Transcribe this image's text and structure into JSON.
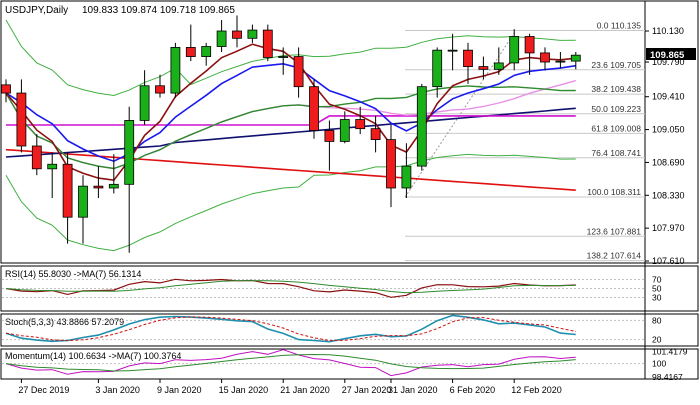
{
  "header": {
    "symbol": "USDJPY,Daily",
    "ohlc": "109.833 109.874 109.718 109.865"
  },
  "price_axis": {
    "ticks": [
      "110.130",
      "109.790",
      "109.410",
      "109.050",
      "108.690",
      "108.330",
      "107.970",
      "107.610"
    ],
    "current_price": "109.865"
  },
  "x_axis": {
    "labels": [
      "27 Dec 2019",
      "3 Jan 2020",
      "9 Jan 2020",
      "15 Jan 2020",
      "21 Jan 2020",
      "27 Jan 2020",
      "31 Jan 2020",
      "6 Feb 2020",
      "12 Feb 2020"
    ]
  },
  "fibonacci": [
    {
      "label": "0.0 110.135",
      "level": 110.135
    },
    {
      "label": "23.6 109.705",
      "level": 109.705
    },
    {
      "label": "38.2 109.438",
      "level": 109.438
    },
    {
      "label": "50.0 109.223",
      "level": 109.223
    },
    {
      "label": "61.8 109.008",
      "level": 109.008
    },
    {
      "label": "76.4 108.741",
      "level": 108.741
    },
    {
      "label": "100.0 108.311",
      "level": 108.311
    },
    {
      "label": "123.6 107.881",
      "level": 107.881
    },
    {
      "label": "138.2 107.614",
      "level": 107.614
    }
  ],
  "rsi": {
    "title": "RSI(14) 55.8030 ->MA(7) 56.1314",
    "ticks": [
      "70",
      "50",
      "30"
    ]
  },
  "stoch": {
    "title": "Stoch(5,3,3) 43.8866 57.2079",
    "ticks": [
      "80",
      "20"
    ]
  },
  "momentum": {
    "title": "Momentum(14) 100.6634 ->MA(7) 100.3764",
    "ticks": [
      "101.4179",
      "100",
      "98.4167"
    ]
  },
  "colors": {
    "bull": "#19b019",
    "bear": "#ee1c1c",
    "ma_blue": "#1a1af0",
    "ma_maroon": "#8b1010",
    "ma_green": "#2e8b2e",
    "ma_magenta": "#d010d0",
    "ma_pink": "#e890e8",
    "ma_navy": "#101070",
    "ma_red": "#e01010",
    "bollinger": "#40b040"
  },
  "chart_data": {
    "type": "candlestick",
    "x": [
      "2019-12-26",
      "2019-12-27",
      "2019-12-30",
      "2019-12-31",
      "2020-01-02",
      "2020-01-03",
      "2020-01-06",
      "2020-01-07",
      "2020-01-08",
      "2020-01-09",
      "2020-01-10",
      "2020-01-13",
      "2020-01-14",
      "2020-01-15",
      "2020-01-16",
      "2020-01-17",
      "2020-01-20",
      "2020-01-21",
      "2020-01-22",
      "2020-01-23",
      "2020-01-24",
      "2020-01-27",
      "2020-01-28",
      "2020-01-29",
      "2020-01-30",
      "2020-01-31",
      "2020-02-03",
      "2020-02-04",
      "2020-02-05",
      "2020-02-06",
      "2020-02-07",
      "2020-02-10",
      "2020-02-11",
      "2020-02-12",
      "2020-02-13",
      "2020-02-14",
      "2020-02-17",
      "2020-02-18"
    ],
    "open": [
      109.54,
      109.45,
      108.87,
      108.62,
      108.67,
      108.09,
      108.43,
      108.41,
      108.45,
      109.15,
      109.53,
      109.45,
      109.95,
      109.85,
      109.96,
      110.13,
      110.05,
      110.14,
      109.84,
      109.85,
      109.52,
      109.04,
      108.92,
      109.16,
      109.06,
      108.94,
      108.41,
      108.65,
      109.52,
      109.92,
      109.92,
      109.74,
      109.71,
      109.78,
      110.07,
      109.89,
      109.79,
      109.8
    ],
    "high": [
      109.6,
      109.6,
      109.0,
      108.8,
      108.8,
      108.55,
      108.65,
      108.78,
      109.3,
      109.7,
      109.65,
      110.0,
      110.2,
      110.0,
      110.25,
      110.3,
      110.2,
      110.2,
      109.95,
      109.95,
      109.6,
      109.15,
      109.25,
      109.3,
      109.2,
      109.1,
      108.9,
      109.55,
      109.95,
      110.1,
      110.0,
      109.85,
      109.95,
      110.15,
      110.1,
      109.95,
      109.9,
      109.9
    ],
    "low": [
      109.35,
      108.8,
      108.55,
      108.3,
      107.8,
      107.8,
      108.3,
      108.35,
      107.7,
      109.1,
      109.4,
      109.4,
      109.8,
      109.75,
      109.9,
      109.95,
      110.0,
      109.8,
      109.65,
      109.4,
      108.95,
      108.6,
      108.9,
      109.0,
      108.8,
      108.2,
      108.3,
      108.6,
      109.4,
      109.7,
      109.55,
      109.6,
      109.65,
      109.7,
      109.65,
      109.7,
      109.72,
      109.71
    ],
    "close": [
      109.45,
      108.87,
      108.62,
      108.67,
      108.09,
      108.43,
      108.41,
      108.45,
      109.15,
      109.53,
      109.45,
      109.95,
      109.85,
      109.96,
      110.13,
      110.05,
      110.14,
      109.84,
      109.85,
      109.52,
      109.04,
      108.92,
      109.16,
      109.06,
      108.94,
      108.41,
      108.65,
      109.52,
      109.92,
      109.92,
      109.74,
      109.71,
      109.78,
      110.07,
      109.89,
      109.79,
      109.8,
      109.865
    ]
  }
}
